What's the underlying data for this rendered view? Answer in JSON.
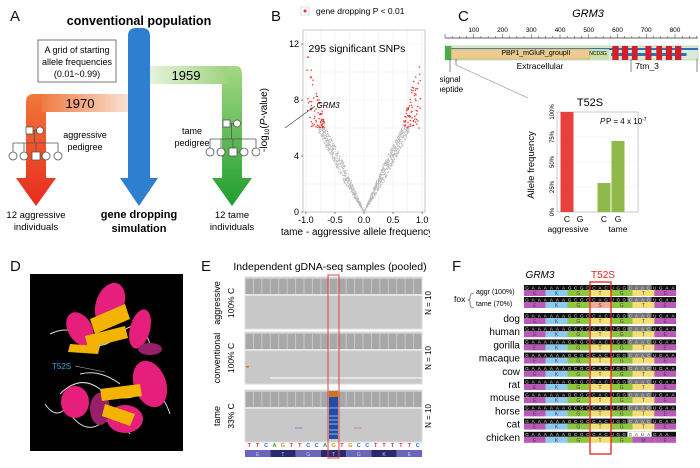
{
  "panels": {
    "A": {
      "letter": "A",
      "title": "conventional population",
      "grid_box": [
        "A grid of starting",
        "allele frequencies",
        "(0.01~0.99)"
      ],
      "year_aggressive": "1970",
      "year_tame": "1959",
      "aggressive_pedigree": [
        "aggressive",
        "pedigree"
      ],
      "tame_pedigree": [
        "tame",
        "pedigree"
      ],
      "out_aggressive": [
        "12 aggressive",
        "individuals"
      ],
      "out_center": [
        "gene dropping",
        "simulation"
      ],
      "out_tame": [
        "12 tame",
        "individuals"
      ],
      "colors": {
        "aggressive": "#e8401c",
        "conventional": "#2f7fd0",
        "tame": "#3aaa35"
      }
    },
    "B": {
      "letter": "B",
      "legend_label": "gene dropping P < 0.01",
      "annotation": "295 significant SNPs",
      "gene_label": "GRM3"
    },
    "C": {
      "letter": "C",
      "gene": "GRM3",
      "ticks": [
        "100",
        "200",
        "300",
        "400",
        "500",
        "600",
        "700",
        "800"
      ],
      "domain_pbp": "PBP1_mGluR_groupII",
      "domain_ncd3g": "NCD3G",
      "label_extracellular": "Extracellular",
      "label_7tm": "7tm_3",
      "signal_peptide": [
        "signal",
        "peptide"
      ],
      "variant": "T52S",
      "pvalue_text": "P = 4 x 10",
      "pvalue_exp": "-7"
    },
    "D": {
      "letter": "D",
      "label": "T52S"
    },
    "E": {
      "letter": "E",
      "title": "Independent gDNA-seq samples (pooled)",
      "tracks": [
        {
          "group": "aggressive",
          "pct": "100% C",
          "n": "N = 10"
        },
        {
          "group": "conventional",
          "pct": "100% C",
          "n": "N = 10"
        },
        {
          "group": "tame",
          "pct": "33% C",
          "n": "N = 10"
        }
      ],
      "dna": [
        "T",
        "T",
        "C",
        "A",
        "G",
        "T",
        "T",
        "C",
        "C",
        "A",
        "G",
        "T",
        "G",
        "C",
        "C",
        "T",
        "T",
        "T",
        "T",
        "T",
        "C"
      ],
      "aa": [
        "E",
        "T",
        "G",
        "T",
        "G",
        "K",
        "E"
      ]
    },
    "F": {
      "letter": "F",
      "gene": "GRM3",
      "variant": "T52S",
      "fox_label": "fox",
      "species": [
        {
          "name": "aggr (100%)",
          "fox": true,
          "nt": "GAAAAAAGCGCCACUGGCAACUGAA",
          "aa": [
            "E",
            "K",
            "G",
            "T",
            "G",
            "T",
            "E"
          ]
        },
        {
          "name": "tame (70%)",
          "fox": true,
          "nt": "GAAAAAAGCGCCAGUGGCAACUGAA",
          "aa": [
            "E",
            "K",
            "G",
            "S",
            "G",
            "T",
            "E"
          ]
        },
        {
          "name": "dog",
          "nt": "GAAAAAAGCGCCACUGGCAACUGAA",
          "aa": [
            "E",
            "K",
            "G",
            "T",
            "G",
            "T",
            "E"
          ]
        },
        {
          "name": "human",
          "nt": "GAAAAAAGCGCCACUGGCAACUGAA",
          "aa": [
            "E",
            "K",
            "G",
            "T",
            "G",
            "T",
            "E"
          ]
        },
        {
          "name": "gorilla",
          "nt": "GAAAAAAGCGCCACUGGCAACUGAA",
          "aa": [
            "E",
            "K",
            "G",
            "T",
            "G",
            "T",
            "E"
          ]
        },
        {
          "name": "macaque",
          "nt": "GAAAAAAGCGCCACUGGCAACUGAA",
          "aa": [
            "E",
            "K",
            "G",
            "T",
            "G",
            "T",
            "E"
          ]
        },
        {
          "name": "cow",
          "nt": "GAAAAAAGCGCCACUGGCAACUGAA",
          "aa": [
            "E",
            "K",
            "G",
            "T",
            "G",
            "T",
            "E"
          ]
        },
        {
          "name": "rat",
          "nt": "GAAAAAAGCGCCACUGGCAACUGAA",
          "aa": [
            "E",
            "K",
            "G",
            "T",
            "G",
            "T",
            "E"
          ]
        },
        {
          "name": "mouse",
          "nt": "GAAAAAAGCGCCACUGGCAACUGAA",
          "aa": [
            "E",
            "K",
            "G",
            "T",
            "G",
            "T",
            "E"
          ]
        },
        {
          "name": "horse",
          "nt": "GAAAAAAGCGCCACUGGCAACUGAA",
          "aa": [
            "E",
            "K",
            "G",
            "T",
            "G",
            "T",
            "E"
          ]
        },
        {
          "name": "cat",
          "nt": "GAAAAAAGCGCCACUGGCAACUGAG",
          "aa": [
            "E",
            "K",
            "G",
            "T",
            "G",
            "T",
            "E"
          ]
        },
        {
          "name": "chicken",
          "nt": "GAAAAAAGCGCCACUGGGAUAGAA",
          "aa": [
            "E",
            "K",
            "G",
            "T",
            "G",
            "M",
            "E"
          ]
        }
      ]
    }
  },
  "chart_data": [
    {
      "id": "volcano",
      "type": "scatter",
      "title": "",
      "xlabel": "tame - aggressive allele frequency",
      "ylabel": "-log10(P-value)",
      "xlim": [
        -1.05,
        1.05
      ],
      "ylim": [
        0,
        13
      ],
      "xticks": [
        "-1.0",
        "-0.5",
        "0.0",
        "0.5",
        "1.0"
      ],
      "xtick_values": [
        -1.0,
        -0.5,
        0.0,
        0.5,
        1.0
      ],
      "yticks": [
        "0",
        "4",
        "8",
        "12"
      ],
      "ytick_values": [
        0,
        4,
        8,
        12
      ],
      "grid": true,
      "legend": "top",
      "series": [
        {
          "name": "non-significant",
          "color": "#b8b8b8",
          "description": "V-shaped cloud: y rises from 0 at x=0 to ~6 at |x|~0.7"
        },
        {
          "name": "gene dropping P < 0.01",
          "color": "#e8312a",
          "count": 295,
          "description": "points with |x| > ~0.65 and y from ~6 to ~11.5"
        }
      ],
      "annotations": [
        {
          "text": "295 significant SNPs"
        },
        {
          "text": "GRM3",
          "x": -0.72,
          "y": 6.3
        }
      ]
    },
    {
      "id": "allele-freq",
      "type": "bar",
      "title": "T52S",
      "ylabel": "Allele frequency",
      "ylim": [
        0,
        100
      ],
      "yticks": [
        "0%",
        "25%",
        "50%",
        "75%",
        "100%"
      ],
      "categories": [
        "C",
        "G",
        "C",
        "G"
      ],
      "groups": [
        "aggressive",
        "tame"
      ],
      "values": [
        100,
        0,
        29,
        71
      ],
      "colors": [
        "#e8403c",
        "#e8403c",
        "#8fba4a",
        "#8fba4a"
      ],
      "annotation": "P = 4 x 10^-7"
    },
    {
      "id": "protein-domains",
      "type": "table",
      "xlim": [
        0,
        880
      ],
      "xticks": [
        100,
        200,
        300,
        400,
        500,
        600,
        700,
        800
      ],
      "domains": [
        {
          "name": "signal peptide",
          "start": 1,
          "end": 22
        },
        {
          "name": "PBP1_mGluR_groupII",
          "start": 22,
          "end": 505
        },
        {
          "name": "NCD3G",
          "start": 505,
          "end": 570
        },
        {
          "name": "7tm_3",
          "start": 580,
          "end": 830
        }
      ],
      "tm_helices": [
        [
          582,
          604
        ],
        [
          615,
          637
        ],
        [
          650,
          670
        ],
        [
          697,
          718
        ],
        [
          735,
          755
        ],
        [
          768,
          790
        ],
        [
          800,
          822
        ]
      ]
    }
  ]
}
